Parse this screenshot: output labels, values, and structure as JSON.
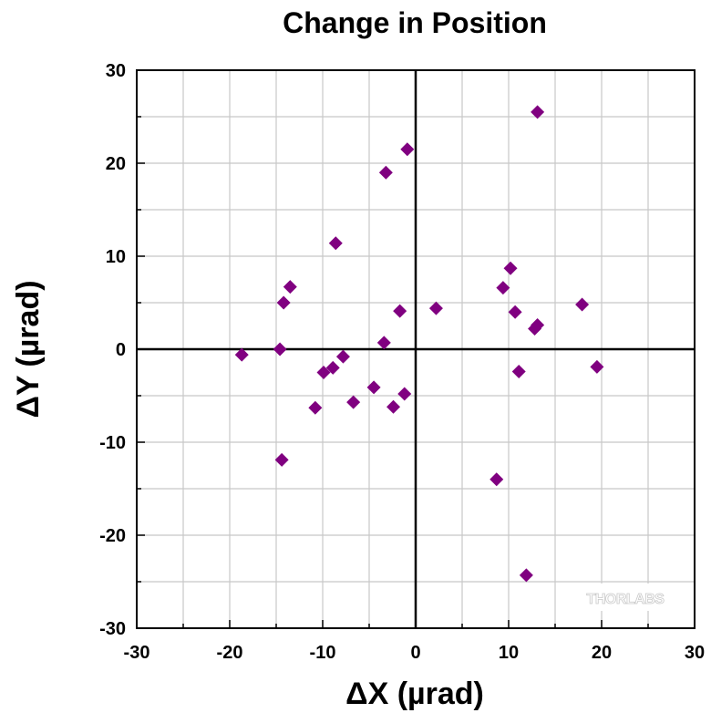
{
  "chart_data": {
    "type": "scatter",
    "title": "Change in Position",
    "xlabel": "ΔX (µrad)",
    "ylabel": "ΔY (µrad)",
    "xlim": [
      -30,
      30
    ],
    "ylim": [
      -30,
      30
    ],
    "xticks": [
      "-30",
      "-20",
      "-10",
      "0",
      "20",
      "30"
    ],
    "xtick_values": [
      -30,
      -20,
      -10,
      0,
      20,
      30
    ],
    "xtick_extra": [
      {
        "value": 10,
        "label": "10"
      }
    ],
    "yticks": [
      "-30",
      "-20",
      "-10",
      "0",
      "10",
      "20",
      "30"
    ],
    "ytick_values": [
      -30,
      -20,
      -10,
      0,
      10,
      20,
      30
    ],
    "grid": true,
    "marker": "diamond",
    "color": "#800080",
    "points": [
      {
        "x": 13.1,
        "y": 25.5
      },
      {
        "x": -0.9,
        "y": 21.5
      },
      {
        "x": -3.2,
        "y": 19.0
      },
      {
        "x": -8.6,
        "y": 11.4
      },
      {
        "x": 10.2,
        "y": 8.7
      },
      {
        "x": -13.5,
        "y": 6.7
      },
      {
        "x": 9.4,
        "y": 6.6
      },
      {
        "x": -14.2,
        "y": 5.0
      },
      {
        "x": 17.9,
        "y": 4.8
      },
      {
        "x": 2.2,
        "y": 4.4
      },
      {
        "x": -1.7,
        "y": 4.1
      },
      {
        "x": 10.7,
        "y": 4.0
      },
      {
        "x": 13.1,
        "y": 2.6
      },
      {
        "x": 12.8,
        "y": 2.2
      },
      {
        "x": -3.4,
        "y": 0.7
      },
      {
        "x": -14.6,
        "y": 0.0
      },
      {
        "x": -18.7,
        "y": -0.6
      },
      {
        "x": -7.8,
        "y": -0.8
      },
      {
        "x": -8.9,
        "y": -2.0
      },
      {
        "x": -9.9,
        "y": -2.5
      },
      {
        "x": 19.5,
        "y": -1.9
      },
      {
        "x": 11.1,
        "y": -2.4
      },
      {
        "x": -4.5,
        "y": -4.1
      },
      {
        "x": -1.2,
        "y": -4.8
      },
      {
        "x": -6.7,
        "y": -5.7
      },
      {
        "x": -2.4,
        "y": -6.2
      },
      {
        "x": -10.8,
        "y": -6.3
      },
      {
        "x": -14.4,
        "y": -11.9
      },
      {
        "x": 8.7,
        "y": -14.0
      },
      {
        "x": 11.9,
        "y": -24.3
      }
    ]
  },
  "logo_text": "THORLABS"
}
